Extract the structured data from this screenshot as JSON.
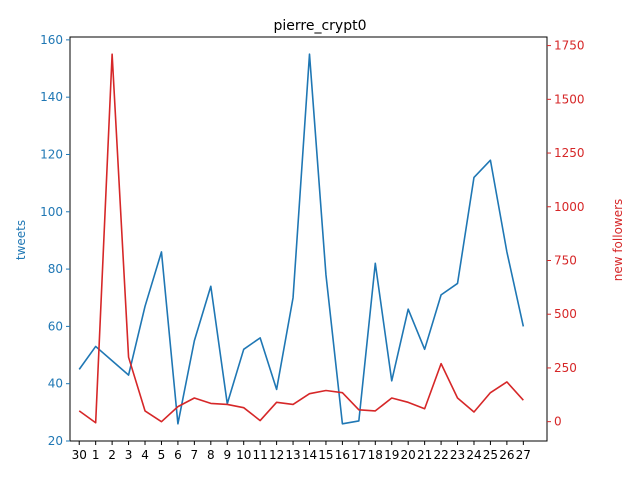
{
  "chart_data": {
    "type": "line",
    "title": "pierre_crypt0",
    "xlabel": "",
    "categories": [
      "30",
      "1",
      "2",
      "3",
      "4",
      "5",
      "6",
      "7",
      "8",
      "9",
      "10",
      "11",
      "12",
      "13",
      "14",
      "15",
      "16",
      "17",
      "18",
      "19",
      "20",
      "21",
      "22",
      "23",
      "24",
      "25",
      "26",
      "27"
    ],
    "series": [
      {
        "name": "tweets",
        "axis": "left",
        "color": "#1f77b4",
        "values": [
          45,
          53,
          48,
          43,
          67,
          86,
          26,
          55,
          74,
          33,
          52,
          56,
          38,
          70,
          155,
          78,
          26,
          27,
          82,
          41,
          66,
          52,
          71,
          75,
          112,
          118,
          86,
          60
        ]
      },
      {
        "name": "new followers",
        "axis": "right",
        "color": "#d62728",
        "values": [
          50,
          -5,
          1710,
          300,
          50,
          0,
          70,
          110,
          85,
          80,
          65,
          5,
          90,
          80,
          130,
          145,
          135,
          55,
          50,
          110,
          90,
          60,
          270,
          110,
          45,
          135,
          185,
          100
        ]
      }
    ],
    "y_left": {
      "label": "tweets",
      "ylim": [
        20,
        161
      ],
      "ticks": [
        20,
        40,
        60,
        80,
        100,
        120,
        140,
        160
      ],
      "color": "#1f77b4"
    },
    "y_right": {
      "label": "new followers",
      "ylim": [
        -90,
        1790
      ],
      "ticks": [
        0,
        250,
        500,
        750,
        1000,
        1250,
        1500,
        1750
      ],
      "color": "#d62728"
    },
    "grid": false,
    "legend": "none"
  }
}
